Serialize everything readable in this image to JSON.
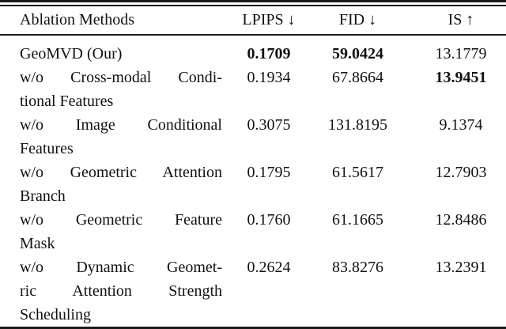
{
  "table": {
    "headers": [
      {
        "label": "Ablation Methods"
      },
      {
        "label": "LPIPS ↓"
      },
      {
        "label": "FID ↓"
      },
      {
        "label": "IS ↑"
      }
    ],
    "rows": [
      {
        "method_lines": [
          "GeoMVD (Our)"
        ],
        "lpips": "0.1709",
        "fid": "59.0424",
        "is": "13.1779",
        "bold_cells": [
          "lpips",
          "fid"
        ]
      },
      {
        "method_lines": [
          "w/o Cross-modal Condi-",
          "tional Features"
        ],
        "lpips": "0.1934",
        "fid": "67.8664",
        "is": "13.9451",
        "bold_cells": [
          "is"
        ]
      },
      {
        "method_lines": [
          "w/o Image Conditional",
          "Features"
        ],
        "lpips": "0.3075",
        "fid": "131.8195",
        "is": "9.1374",
        "bold_cells": []
      },
      {
        "method_lines": [
          "w/o Geometric Attention",
          "Branch"
        ],
        "lpips": "0.1795",
        "fid": "61.5617",
        "is": "12.7903",
        "bold_cells": []
      },
      {
        "method_lines": [
          "w/o Geometric Feature",
          "Mask"
        ],
        "lpips": "0.1760",
        "fid": "61.1665",
        "is": "12.8486",
        "bold_cells": []
      },
      {
        "method_lines": [
          "w/o Dynamic Geomet-",
          "ric Attention Strength",
          "Scheduling"
        ],
        "lpips": "0.2624",
        "fid": "83.8276",
        "is": "13.2391",
        "bold_cells": []
      }
    ],
    "colors": {
      "text": "#111111",
      "rule": "#1a1a1a",
      "background": "#ffffff"
    }
  }
}
